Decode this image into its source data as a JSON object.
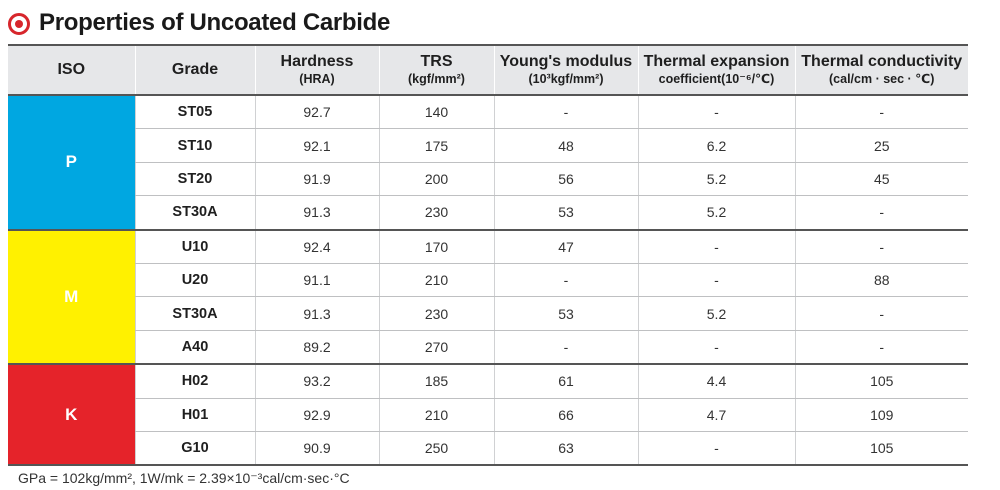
{
  "title": "Properties of Uncoated Carbide",
  "colors": {
    "accent": "#d7262c",
    "iso_p": "#00a7e1",
    "iso_m": "#fff100",
    "iso_k": "#e5232a"
  },
  "headers": {
    "iso": "ISO",
    "grade": "Grade",
    "hardness": {
      "main": "Hardness",
      "sub": "(HRA)"
    },
    "trs": {
      "main": "TRS",
      "sub": "(kgf/mm²)"
    },
    "youngs": {
      "main": "Young's modulus",
      "sub": "(10³kgf/mm²)"
    },
    "thermal_exp": {
      "main": "Thermal expansion",
      "sub": "coefficient(10⁻⁶/℃)"
    },
    "thermal_cond": {
      "main": "Thermal conductivity",
      "sub": "(cal/cm · sec · ℃)"
    }
  },
  "groups": [
    {
      "iso": "P",
      "rows": [
        {
          "grade": "ST05",
          "hardness": "92.7",
          "trs": "140",
          "youngs": "-",
          "exp": "-",
          "cond": "-"
        },
        {
          "grade": "ST10",
          "hardness": "92.1",
          "trs": "175",
          "youngs": "48",
          "exp": "6.2",
          "cond": "25"
        },
        {
          "grade": "ST20",
          "hardness": "91.9",
          "trs": "200",
          "youngs": "56",
          "exp": "5.2",
          "cond": "45"
        },
        {
          "grade": "ST30A",
          "hardness": "91.3",
          "trs": "230",
          "youngs": "53",
          "exp": "5.2",
          "cond": "-"
        }
      ]
    },
    {
      "iso": "M",
      "rows": [
        {
          "grade": "U10",
          "hardness": "92.4",
          "trs": "170",
          "youngs": "47",
          "exp": "-",
          "cond": "-"
        },
        {
          "grade": "U20",
          "hardness": "91.1",
          "trs": "210",
          "youngs": "-",
          "exp": "-",
          "cond": "88"
        },
        {
          "grade": "ST30A",
          "hardness": "91.3",
          "trs": "230",
          "youngs": "53",
          "exp": "5.2",
          "cond": "-"
        },
        {
          "grade": "A40",
          "hardness": "89.2",
          "trs": "270",
          "youngs": "-",
          "exp": "-",
          "cond": "-"
        }
      ]
    },
    {
      "iso": "K",
      "rows": [
        {
          "grade": "H02",
          "hardness": "93.2",
          "trs": "185",
          "youngs": "61",
          "exp": "4.4",
          "cond": "105"
        },
        {
          "grade": "H01",
          "hardness": "92.9",
          "trs": "210",
          "youngs": "66",
          "exp": "4.7",
          "cond": "109"
        },
        {
          "grade": "G10",
          "hardness": "90.9",
          "trs": "250",
          "youngs": "63",
          "exp": "-",
          "cond": "105"
        }
      ]
    }
  ],
  "footnote": "GPa = 102kg/mm², 1W/mk = 2.39×10⁻³cal/cm·sec·°C"
}
